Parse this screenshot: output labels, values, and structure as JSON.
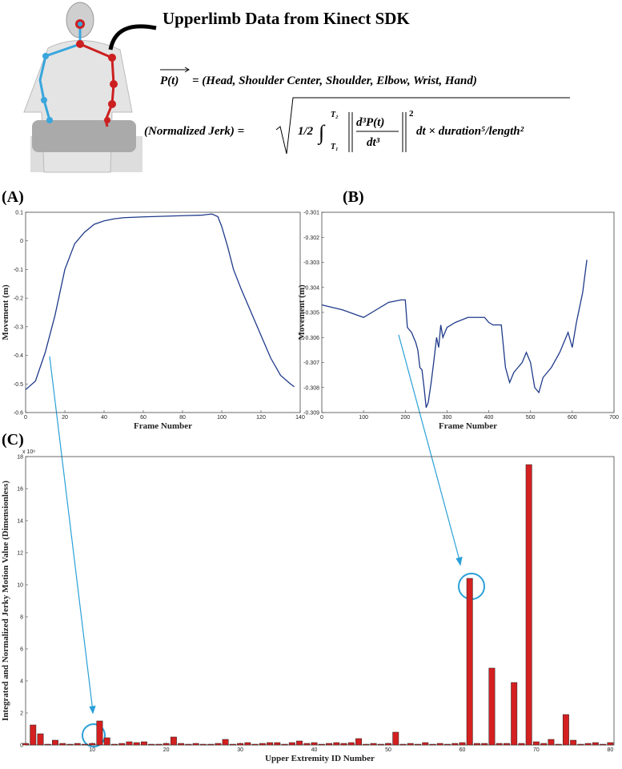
{
  "header": {
    "title": "Upperlimb Data from Kinect SDK",
    "formula_1": {
      "vector": "P(t)",
      "rhs": "= (Head, Shoulder Center, Shoulder, Elbow, Wrist, Hand)"
    },
    "formula_2": {
      "lhs": "(Normalized Jerk) =",
      "coef": "1/2",
      "integral": "∫",
      "lower": "T₁",
      "upper": "T₂",
      "numerator": "d³P(t)",
      "denominator": "dt³",
      "power": "2",
      "tail": "dt × duration⁵/length²"
    }
  },
  "chart_data": [
    {
      "type": "line",
      "panel_label": "(A)",
      "x_label": "Frame Number",
      "y_label": "Movement (m)",
      "color": "#1f3a8a",
      "x": [
        0,
        5,
        10,
        15,
        20,
        25,
        30,
        35,
        40,
        45,
        50,
        60,
        70,
        80,
        90,
        95,
        98,
        100,
        103,
        106,
        110,
        115,
        120,
        125,
        130,
        135,
        137
      ],
      "values": [
        -0.52,
        -0.49,
        -0.39,
        -0.26,
        -0.1,
        -0.01,
        0.03,
        0.058,
        0.07,
        0.077,
        0.081,
        0.084,
        0.086,
        0.088,
        0.09,
        0.094,
        0.085,
        0.05,
        -0.02,
        -0.1,
        -0.17,
        -0.25,
        -0.33,
        -0.41,
        -0.47,
        -0.5,
        -0.51
      ],
      "xlim": [
        0,
        140
      ],
      "xticks": [
        0,
        20,
        40,
        60,
        80,
        100,
        120,
        140
      ],
      "ylim": [
        -0.6,
        0.1
      ],
      "yticks": [
        -0.6,
        -0.5,
        -0.4,
        -0.3,
        -0.2,
        -0.1,
        0,
        0.1
      ]
    },
    {
      "type": "line",
      "panel_label": "(B)",
      "x_label": "Frame Number",
      "y_label": "Movement (m)",
      "color": "#1f3a8a",
      "x": [
        0,
        50,
        100,
        130,
        160,
        190,
        200,
        205,
        215,
        225,
        230,
        235,
        240,
        245,
        250,
        255,
        262,
        268,
        275,
        280,
        285,
        290,
        300,
        320,
        350,
        390,
        400,
        410,
        430,
        440,
        450,
        460,
        470,
        480,
        490,
        500,
        510,
        520,
        530,
        550,
        570,
        590,
        600,
        610,
        625,
        635
      ],
      "values": [
        -0.3047,
        -0.3049,
        -0.3052,
        -0.3049,
        -0.3046,
        -0.3045,
        -0.3045,
        -0.3056,
        -0.3058,
        -0.3062,
        -0.3065,
        -0.3072,
        -0.3073,
        -0.308,
        -0.3088,
        -0.3086,
        -0.3078,
        -0.307,
        -0.306,
        -0.3064,
        -0.3055,
        -0.306,
        -0.3056,
        -0.3054,
        -0.3052,
        -0.3052,
        -0.3054,
        -0.3055,
        -0.3055,
        -0.3072,
        -0.3078,
        -0.3074,
        -0.3072,
        -0.307,
        -0.3066,
        -0.307,
        -0.308,
        -0.3082,
        -0.3076,
        -0.3072,
        -0.3066,
        -0.3058,
        -0.3064,
        -0.3054,
        -0.3042,
        -0.3029
      ],
      "xlim": [
        0,
        700
      ],
      "xticks": [
        0,
        100,
        200,
        300,
        400,
        500,
        600,
        700
      ],
      "ylim": [
        -0.309,
        -0.301
      ],
      "yticks": [
        -0.309,
        -0.308,
        -0.307,
        -0.306,
        -0.305,
        -0.304,
        -0.303,
        -0.302,
        -0.301
      ]
    },
    {
      "type": "bar",
      "panel_label": "(C)",
      "x_label": "Upper Extremity ID Number",
      "y_label": "Integrated and Normalized Jerky Motion Value (Dimensionless)",
      "y_exponent_label": "x 10⁶",
      "color": "#d42020",
      "x": [
        1,
        2,
        3,
        4,
        5,
        6,
        7,
        8,
        9,
        10,
        11,
        12,
        13,
        14,
        15,
        16,
        17,
        18,
        19,
        20,
        21,
        22,
        23,
        24,
        25,
        26,
        27,
        28,
        29,
        30,
        31,
        32,
        33,
        34,
        35,
        36,
        37,
        38,
        39,
        40,
        41,
        42,
        43,
        44,
        45,
        46,
        47,
        48,
        49,
        50,
        51,
        52,
        53,
        54,
        55,
        56,
        57,
        58,
        59,
        60,
        61,
        62,
        63,
        64,
        65,
        66,
        67,
        68,
        69,
        70,
        71,
        72,
        73,
        74,
        75,
        76,
        77,
        78,
        79,
        80
      ],
      "values": [
        0.1,
        1.25,
        0.7,
        0.05,
        0.3,
        0.1,
        0.05,
        0.1,
        0.05,
        0.1,
        1.5,
        0.45,
        0.05,
        0.1,
        0.2,
        0.15,
        0.2,
        0.05,
        0.05,
        0.1,
        0.5,
        0.1,
        0.05,
        0.1,
        0.05,
        0.05,
        0.1,
        0.35,
        0.05,
        0.1,
        0.15,
        0.05,
        0.1,
        0.15,
        0.15,
        0.05,
        0.15,
        0.25,
        0.1,
        0.15,
        0.05,
        0.1,
        0.15,
        0.1,
        0.15,
        0.4,
        0.05,
        0.1,
        0.05,
        0.1,
        0.8,
        0.05,
        0.1,
        0.05,
        0.15,
        0.05,
        0.1,
        0.05,
        0.1,
        0.15,
        10.4,
        0.1,
        0.1,
        4.8,
        0.1,
        0.1,
        3.9,
        0.1,
        17.5,
        0.2,
        0.1,
        0.35,
        0.05,
        1.9,
        0.3,
        0.05,
        0.1,
        0.15,
        0.05,
        0.15
      ],
      "xlim": [
        1,
        80.5
      ],
      "xticks": [
        10,
        20,
        30,
        40,
        50,
        60,
        70,
        80
      ],
      "ylim": [
        0,
        18
      ],
      "yticks": [
        0,
        2,
        4,
        6,
        8,
        10,
        12,
        14,
        16,
        18
      ]
    }
  ]
}
